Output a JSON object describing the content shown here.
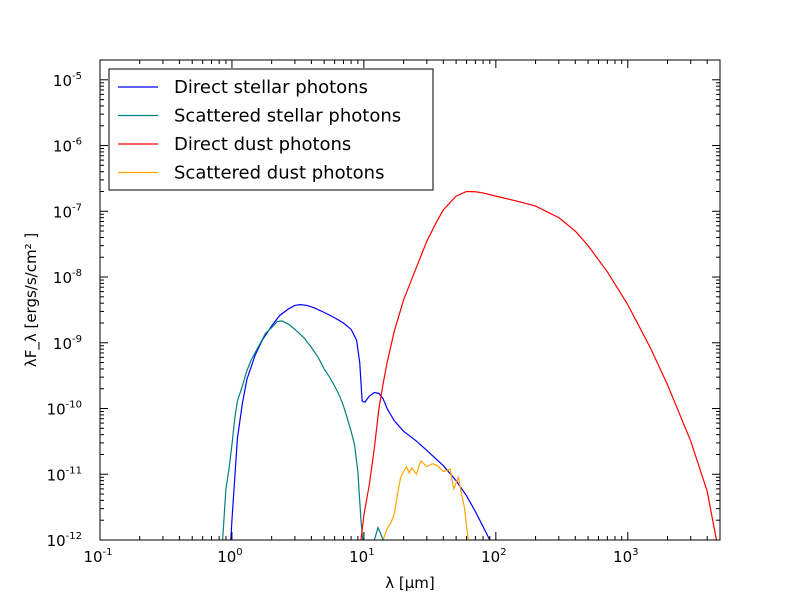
{
  "chart_data": {
    "type": "line",
    "title": "",
    "xlabel": "λ [μm]",
    "ylabel": "λF_λ [ergs/s/cm² ]",
    "xscale": "log",
    "yscale": "log",
    "xlim": [
      0.1,
      5000
    ],
    "ylim": [
      1e-12,
      2e-05
    ],
    "grid": false,
    "legend_position": "top-left",
    "x_ticks": [
      {
        "value": 0.1,
        "base": "10",
        "exp": "-1"
      },
      {
        "value": 1,
        "base": "10",
        "exp": "0"
      },
      {
        "value": 10,
        "base": "10",
        "exp": "1"
      },
      {
        "value": 100,
        "base": "10",
        "exp": "2"
      },
      {
        "value": 1000,
        "base": "10",
        "exp": "3"
      }
    ],
    "y_ticks": [
      {
        "value": 1e-12,
        "base": "10",
        "exp": "-12"
      },
      {
        "value": 1e-11,
        "base": "10",
        "exp": "-11"
      },
      {
        "value": 1e-10,
        "base": "10",
        "exp": "-10"
      },
      {
        "value": 1e-09,
        "base": "10",
        "exp": "-9"
      },
      {
        "value": 1e-08,
        "base": "10",
        "exp": "-8"
      },
      {
        "value": 1e-07,
        "base": "10",
        "exp": "-7"
      },
      {
        "value": 1e-06,
        "base": "10",
        "exp": "-6"
      },
      {
        "value": 1e-05,
        "base": "10",
        "exp": "-5"
      }
    ],
    "series": [
      {
        "name": "Direct stellar photons",
        "color": "#0000ff",
        "points": [
          [
            0.98,
            1e-12
          ],
          [
            1.0,
            2e-12
          ],
          [
            1.1,
            3.5e-11
          ],
          [
            1.2,
            1.2e-10
          ],
          [
            1.3,
            2.8e-10
          ],
          [
            1.5,
            6.5e-10
          ],
          [
            1.7,
            1.1e-09
          ],
          [
            2.0,
            1.8e-09
          ],
          [
            2.3,
            2.6e-09
          ],
          [
            2.7,
            3.3e-09
          ],
          [
            3.0,
            3.7e-09
          ],
          [
            3.3,
            3.8e-09
          ],
          [
            3.7,
            3.7e-09
          ],
          [
            4.2,
            3.4e-09
          ],
          [
            5.0,
            2.9e-09
          ],
          [
            6.0,
            2.4e-09
          ],
          [
            7.0,
            2e-09
          ],
          [
            8.0,
            1.6e-09
          ],
          [
            8.8,
            1.1e-09
          ],
          [
            9.3,
            5e-10
          ],
          [
            9.7,
            1.3e-10
          ],
          [
            10.2,
            1.25e-10
          ],
          [
            11.0,
            1.55e-10
          ],
          [
            12.0,
            1.75e-10
          ],
          [
            13.0,
            1.7e-10
          ],
          [
            14.0,
            1.4e-10
          ],
          [
            15.0,
            1e-10
          ],
          [
            17.0,
            6.5e-11
          ],
          [
            20.0,
            4.5e-11
          ],
          [
            25.0,
            3.2e-11
          ],
          [
            30.0,
            2.3e-11
          ],
          [
            40.0,
            1.35e-11
          ],
          [
            50.0,
            8e-12
          ],
          [
            60.0,
            4.7e-12
          ],
          [
            70.0,
            2.7e-12
          ],
          [
            80.0,
            1.6e-12
          ],
          [
            90.0,
            1e-12
          ]
        ]
      },
      {
        "name": "Scattered stellar photons",
        "color": "#008080",
        "points": [
          [
            0.85,
            1e-12
          ],
          [
            0.9,
            6e-12
          ],
          [
            0.95,
            1.2e-11
          ],
          [
            1.0,
            2.8e-11
          ],
          [
            1.05,
            7e-11
          ],
          [
            1.1,
            1.3e-10
          ],
          [
            1.2,
            2.2e-10
          ],
          [
            1.3,
            3.8e-10
          ],
          [
            1.4,
            5.5e-10
          ],
          [
            1.6,
            9e-10
          ],
          [
            1.8,
            1.4e-09
          ],
          [
            2.0,
            1.7e-09
          ],
          [
            2.2,
            2.1e-09
          ],
          [
            2.4,
            2.15e-09
          ],
          [
            2.7,
            1.9e-09
          ],
          [
            3.0,
            1.6e-09
          ],
          [
            3.5,
            1.2e-09
          ],
          [
            4.0,
            8.5e-10
          ],
          [
            4.5,
            6e-10
          ],
          [
            5.0,
            4e-10
          ],
          [
            5.5,
            3e-10
          ],
          [
            6.0,
            2.2e-10
          ],
          [
            6.5,
            1.6e-10
          ],
          [
            7.0,
            1.1e-10
          ],
          [
            7.5,
            7e-11
          ],
          [
            8.0,
            4.5e-11
          ],
          [
            8.5,
            2.8e-11
          ],
          [
            9.0,
            1.1e-11
          ],
          [
            9.5,
            2e-12
          ],
          [
            9.8,
            1e-12
          ]
        ]
      },
      {
        "name": "Direct dust photons",
        "color": "#ff0000",
        "points": [
          [
            9.5,
            1e-12
          ],
          [
            10.0,
            2.4e-12
          ],
          [
            11.0,
            7e-12
          ],
          [
            12.0,
            2.5e-11
          ],
          [
            13.0,
            1e-10
          ],
          [
            14.0,
            2.4e-10
          ],
          [
            15.0,
            5e-10
          ],
          [
            17.0,
            1.5e-09
          ],
          [
            20.0,
            4.5e-09
          ],
          [
            25.0,
            1.4e-08
          ],
          [
            30.0,
            3.5e-08
          ],
          [
            35.0,
            6.5e-08
          ],
          [
            40.0,
            1.05e-07
          ],
          [
            50.0,
            1.7e-07
          ],
          [
            60.0,
            2e-07
          ],
          [
            70.0,
            1.98e-07
          ],
          [
            80.0,
            1.9e-07
          ],
          [
            100.0,
            1.7e-07
          ],
          [
            150.0,
            1.4e-07
          ],
          [
            200.0,
            1.2e-07
          ],
          [
            300.0,
            8e-08
          ],
          [
            400.0,
            5e-08
          ],
          [
            500.0,
            3e-08
          ],
          [
            700.0,
            1.2e-08
          ],
          [
            1000.0,
            3.8e-09
          ],
          [
            1500.0,
            8e-10
          ],
          [
            2000.0,
            2.3e-10
          ],
          [
            3000.0,
            3.2e-11
          ],
          [
            4000.0,
            5.5e-12
          ],
          [
            4700.0,
            1e-12
          ]
        ]
      },
      {
        "name": "Scattered dust photons",
        "color": "#ffa500",
        "points": [
          [
            14.0,
            1e-12
          ],
          [
            15.0,
            1.5e-12
          ],
          [
            16.0,
            1.8e-12
          ],
          [
            17.0,
            2.5e-12
          ],
          [
            18.0,
            5e-12
          ],
          [
            19.0,
            9e-12
          ],
          [
            20.0,
            1.1e-11
          ],
          [
            21.0,
            1.3e-11
          ],
          [
            22.0,
            1.05e-11
          ],
          [
            23.0,
            1.25e-11
          ],
          [
            25.0,
            1e-11
          ],
          [
            27.0,
            1.6e-11
          ],
          [
            30.0,
            1.3e-11
          ],
          [
            33.0,
            1.45e-11
          ],
          [
            36.0,
            1.35e-11
          ],
          [
            40.0,
            1.1e-11
          ],
          [
            45.0,
            1.2e-11
          ],
          [
            48.0,
            6e-12
          ],
          [
            52.0,
            9e-12
          ],
          [
            55.0,
            5e-12
          ],
          [
            58.0,
            3e-12
          ],
          [
            60.0,
            1.6e-12
          ],
          [
            62.0,
            1e-12
          ]
        ]
      },
      {
        "name": "",
        "color": "#008080",
        "points": [
          [
            12.0,
            1e-12
          ],
          [
            12.8,
            1.55e-12
          ],
          [
            13.5,
            1.2e-12
          ],
          [
            14.0,
            1e-12
          ]
        ]
      }
    ]
  }
}
